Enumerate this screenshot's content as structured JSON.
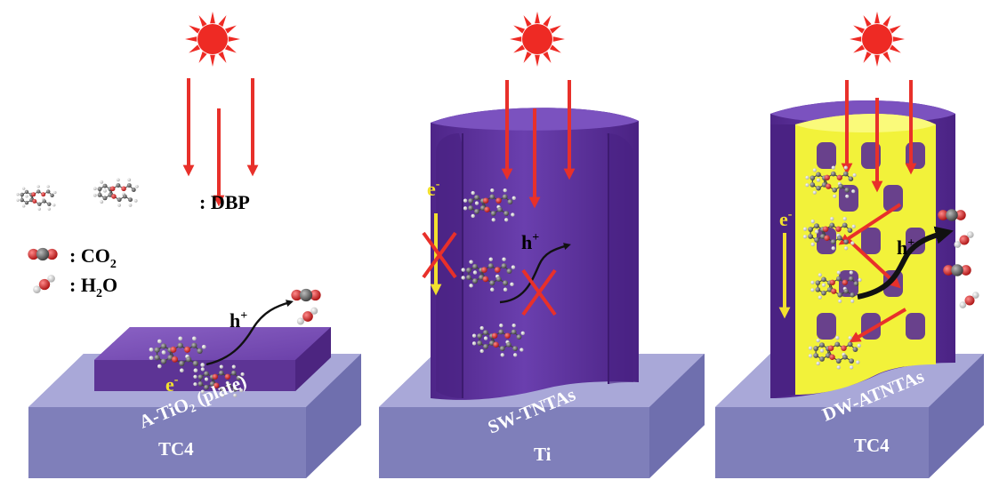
{
  "legend": {
    "dbp": ": DBP",
    "co2_prefix": ": CO",
    "co2_sub": "2",
    "h2o_prefix": ": H",
    "h2o_sub": "2",
    "h2o_suffix": "O"
  },
  "panels": [
    {
      "substrate": "A-TiO₂ (plate)",
      "base": "TC4",
      "hole": "h",
      "hole_sup": "+",
      "electron": "e",
      "electron_sup": "-"
    },
    {
      "substrate": "SW-TNTAs",
      "base": "Ti",
      "hole": "h",
      "hole_sup": "+",
      "electron": "e",
      "electron_sup": "-"
    },
    {
      "substrate": "DW-ATNTAs",
      "base": "TC4",
      "hole": "h",
      "hole_sup": "+",
      "electron": "e",
      "electron_sup": "-"
    }
  ],
  "colors": {
    "sun": "#ee2a24",
    "light_arrow": "#e8302a",
    "tube_purple": "#5b2f96",
    "tube_light": "#7a4fb8",
    "inner_yellow": "#f2f23a",
    "base_top": "#a9a8d8",
    "base_side": "#7f7fba",
    "electron": "#f2e02e",
    "hole_arrow": "#111111",
    "block_cross": "#e8302a",
    "carbon": "#555555",
    "oxygen": "#d82020",
    "hydrogen": "#e8e8e8"
  },
  "icons": [
    "sun-icon",
    "light-arrow-icon",
    "dbp-molecule-icon",
    "co2-molecule-icon",
    "h2o-molecule-icon",
    "block-cross-icon"
  ]
}
